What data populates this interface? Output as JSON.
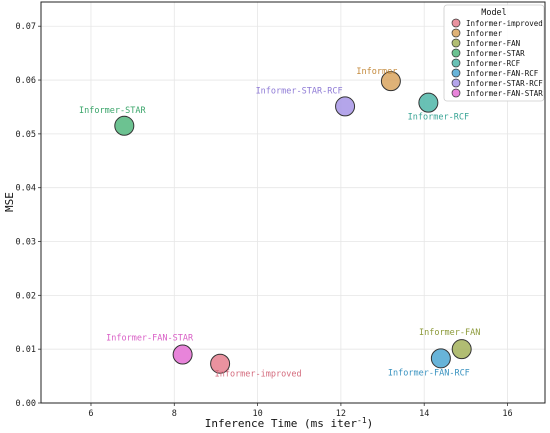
{
  "chart_data": {
    "type": "scatter",
    "xlabel": "Inference Time (ms iter",
    "xlabel_sup": "-1",
    "xlabel_suffix": ")",
    "ylabel": "MSE",
    "xlim": [
      4.8,
      16.9
    ],
    "ylim": [
      0.0,
      0.0745
    ],
    "xticks": [
      6,
      8,
      10,
      12,
      14,
      16
    ],
    "yticks": [
      0.0,
      0.01,
      0.02,
      0.03,
      0.04,
      0.05,
      0.06,
      0.07
    ],
    "grid": true,
    "legend": {
      "title": "Model",
      "placement": "top-right",
      "entries": [
        "Informer-improved",
        "Informer",
        "Informer-FAN",
        "Informer-STAR",
        "Informer-RCF",
        "Informer-FAN-RCF",
        "Informer-STAR-RCF",
        "Informer-FAN-STAR"
      ]
    },
    "series": [
      {
        "name": "Informer-improved",
        "x": 9.1,
        "y": 0.0073,
        "color": "#e57f8e",
        "label": "Informer-improved"
      },
      {
        "name": "Informer",
        "x": 13.2,
        "y": 0.0598,
        "color": "#d9a55f",
        "label": "Informer"
      },
      {
        "name": "Informer-FAN",
        "x": 14.9,
        "y": 0.01,
        "color": "#a3b25a",
        "label": "Informer-FAN"
      },
      {
        "name": "Informer-STAR",
        "x": 6.8,
        "y": 0.0515,
        "color": "#52b77e",
        "label": "Informer-STAR"
      },
      {
        "name": "Informer-RCF",
        "x": 14.1,
        "y": 0.0558,
        "color": "#4fb6a8",
        "label": "Informer-RCF"
      },
      {
        "name": "Informer-FAN-RCF",
        "x": 14.4,
        "y": 0.0083,
        "color": "#4ea7d2",
        "label": "Informer-FAN-RCF"
      },
      {
        "name": "Informer-STAR-RCF",
        "x": 12.1,
        "y": 0.0551,
        "color": "#a795e6",
        "label": "Informer-STAR-RCF"
      },
      {
        "name": "Informer-FAN-STAR",
        "x": 8.2,
        "y": 0.009,
        "color": "#e46fd3",
        "label": "Informer-FAN-STAR"
      }
    ]
  }
}
